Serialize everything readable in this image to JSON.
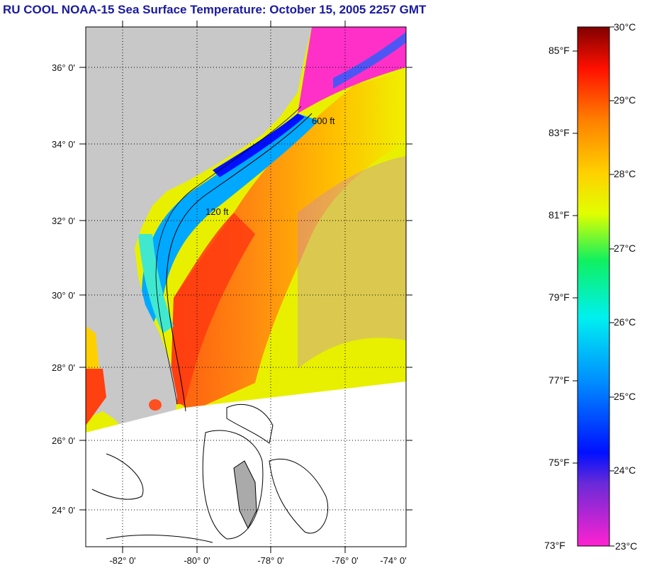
{
  "title": "RU COOL  NOAA-15  Sea Surface Temperature:  October 15, 2005 2257 GMT",
  "latitude_labels": [
    "36° 0'",
    "34° 0'",
    "32° 0'",
    "30° 0'",
    "28° 0'",
    "26° 0'",
    "24° 0'"
  ],
  "longitude_labels": [
    "-82° 0'",
    "-80° 0'",
    "-78° 0'",
    "-76° 0'",
    "-74° 0'"
  ],
  "colorbar": {
    "fahrenheit_labels": [
      "85°F",
      "83°F",
      "81°F",
      "79°F",
      "77°F",
      "75°F",
      "73°F"
    ],
    "celsius_labels": [
      "30°C",
      "29°C",
      "28°C",
      "27°C",
      "26°C",
      "25°C",
      "24°C",
      "23°C"
    ]
  },
  "contour_labels": [
    "120 ft",
    "600 ft"
  ],
  "colors": {
    "title": "#1a1aa0",
    "land": "#c8c8c8",
    "no_data": "#ffffff",
    "scale": [
      "#ff22d0",
      "#6a2ad8",
      "#0010ff",
      "#0090ff",
      "#00f0f0",
      "#10f060",
      "#e0ff00",
      "#ffd000",
      "#ff8000",
      "#ff1000",
      "#800000"
    ]
  }
}
